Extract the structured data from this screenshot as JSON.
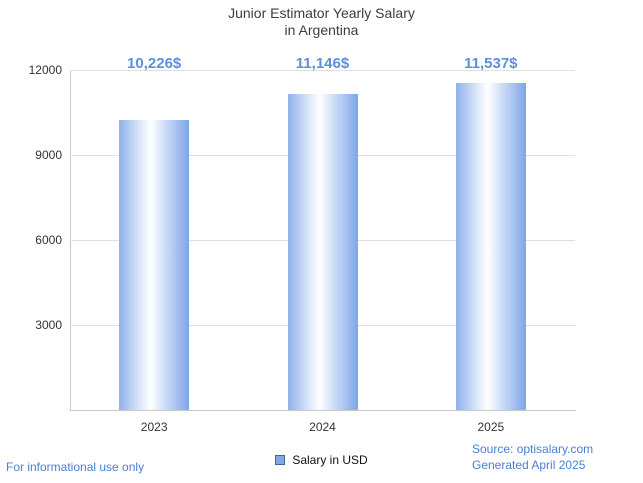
{
  "chart_data": {
    "type": "bar",
    "title": "Junior Estimator Yearly Salary in Argentina",
    "title_lines": [
      "Junior Estimator Yearly Salary",
      "in Argentina"
    ],
    "categories": [
      "2023",
      "2024",
      "2025"
    ],
    "values": [
      10226,
      11146,
      11537
    ],
    "value_labels": [
      "10,226$",
      "11,146$",
      "11,537$"
    ],
    "series": [
      {
        "name": "Salary in USD",
        "values": [
          10226,
          11146,
          11537
        ]
      }
    ],
    "xlabel": "",
    "ylabel": "",
    "ylim": [
      0,
      12000
    ],
    "yticks": [
      3000,
      6000,
      9000,
      12000
    ],
    "grid": true,
    "legend_position": "bottom"
  },
  "legend": {
    "label": "Salary in USD"
  },
  "footer": {
    "left": "For informational use only",
    "source": "Source: optisalary.com",
    "generated": "Generated April 2025"
  },
  "colors": {
    "bar_edge_blue": "#7fa5e9",
    "bar_center": "#ffffff",
    "value_label_blue": "#5d90d8",
    "footer_blue": "#4a7fd6",
    "title_gray": "#3d3d3d",
    "grid_gray": "#e0e0e0",
    "axis_gray": "#c9c9c9"
  }
}
